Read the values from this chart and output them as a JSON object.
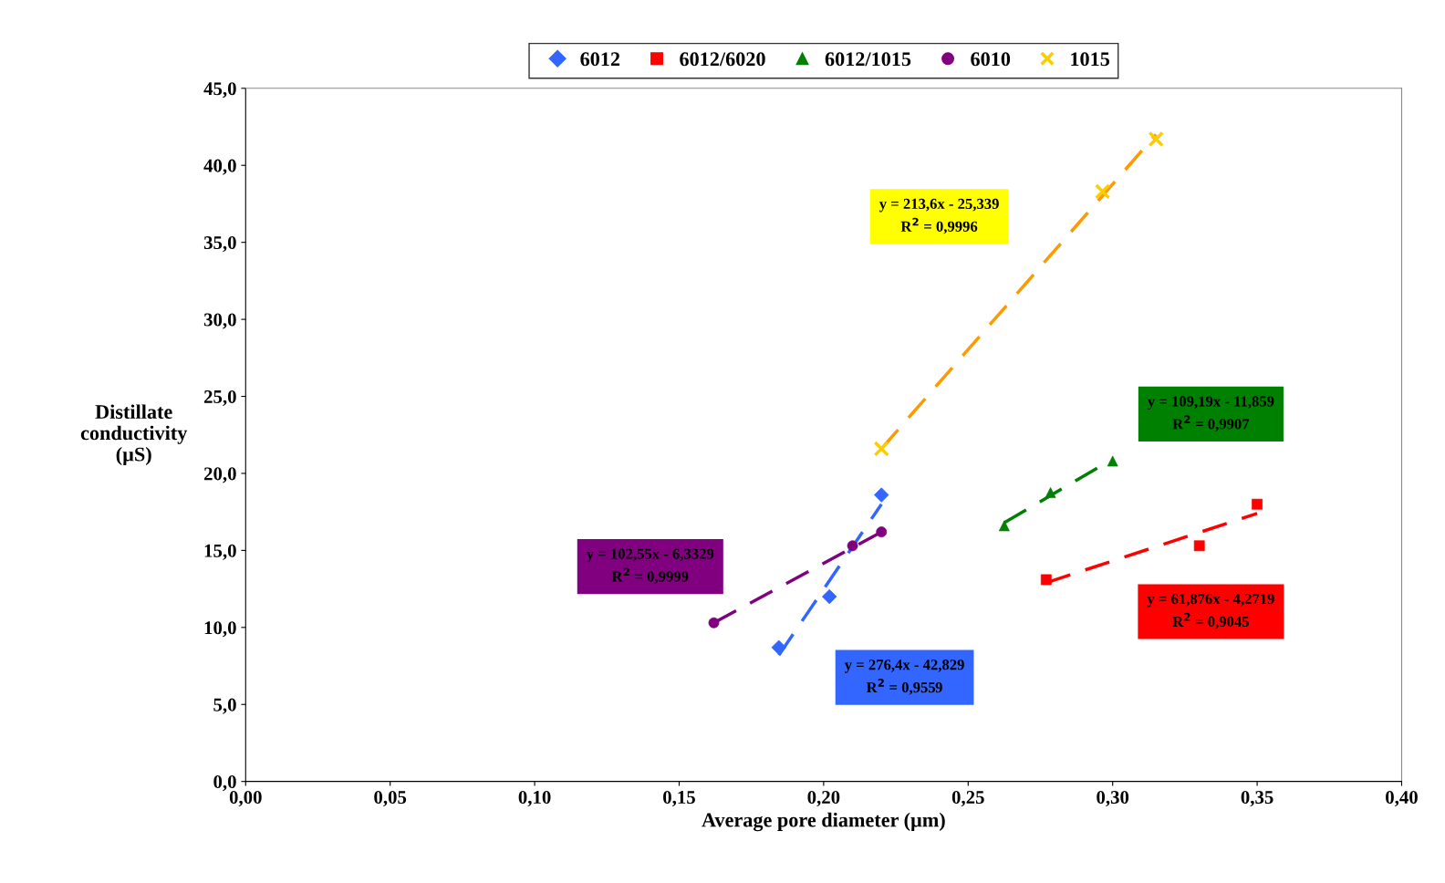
{
  "chart_data": {
    "type": "scatter",
    "xlabel": "Average pore diameter (µm)",
    "ylabel": "Distillate\nconductivity\n(µS)",
    "xlim": [
      0,
      0.4
    ],
    "ylim": [
      0,
      45
    ],
    "xticks": [
      {
        "value": 0,
        "label": "0,00"
      },
      {
        "value": 0.05,
        "label": "0,05"
      },
      {
        "value": 0.1,
        "label": "0,10"
      },
      {
        "value": 0.15,
        "label": "0,15"
      },
      {
        "value": 0.2,
        "label": "0,20"
      },
      {
        "value": 0.25,
        "label": "0,25"
      },
      {
        "value": 0.3,
        "label": "0,30"
      },
      {
        "value": 0.35,
        "label": "0,35"
      },
      {
        "value": 0.4,
        "label": "0,40"
      }
    ],
    "yticks": [
      {
        "value": 0,
        "label": "0,0"
      },
      {
        "value": 5,
        "label": "5,0"
      },
      {
        "value": 10,
        "label": "10,0"
      },
      {
        "value": 15,
        "label": "15,0"
      },
      {
        "value": 20,
        "label": "20,0"
      },
      {
        "value": 25,
        "label": "25,0"
      },
      {
        "value": 30,
        "label": "30,0"
      },
      {
        "value": 35,
        "label": "35,0"
      },
      {
        "value": 40,
        "label": "40,0"
      },
      {
        "value": 45,
        "label": "45,0"
      }
    ],
    "grid": false,
    "legend": "top",
    "series": [
      {
        "name": "6012",
        "marker": "diamond",
        "color": "#3366ff",
        "x": [
          0.1845,
          0.202,
          0.22
        ],
        "values": [
          8.7,
          12.0,
          18.6
        ]
      },
      {
        "name": "6012/6020",
        "marker": "square",
        "color": "#ff0000",
        "x": [
          0.277,
          0.33,
          0.35
        ],
        "values": [
          13.1,
          15.3,
          18.0
        ]
      },
      {
        "name": "6012/1015",
        "marker": "triangle",
        "color": "#008000",
        "x": [
          0.2625,
          0.2785,
          0.3
        ],
        "values": [
          16.6,
          18.75,
          20.8
        ]
      },
      {
        "name": "6010",
        "marker": "circle",
        "color": "#800080",
        "x": [
          0.162,
          0.21,
          0.22
        ],
        "values": [
          10.3,
          15.3,
          16.2
        ]
      },
      {
        "name": "1015",
        "marker": "cross",
        "color": "#ffcc00",
        "x": [
          0.22,
          0.2965,
          0.315
        ],
        "values": [
          21.6,
          38.3,
          41.7
        ]
      },
      {
        "type": "line",
        "marker": "none",
        "line_style": "dashed",
        "color": "#3366ff",
        "x": [
          0.1845,
          0.22
        ],
        "values": [
          8.2,
          18.0
        ]
      },
      {
        "type": "line",
        "marker": "none",
        "line_style": "dashed",
        "color": "#ff0000",
        "x": [
          0.277,
          0.35
        ],
        "values": [
          12.9,
          17.4
        ]
      },
      {
        "type": "line",
        "marker": "none",
        "line_style": "dashed",
        "color": "#008000",
        "x": [
          0.2625,
          0.297
        ],
        "values": [
          16.8,
          20.6
        ]
      },
      {
        "type": "line",
        "marker": "none",
        "line_style": "dashed",
        "color": "#800080",
        "x": [
          0.162,
          0.22
        ],
        "values": [
          10.3,
          16.2
        ]
      },
      {
        "type": "line",
        "marker": "none",
        "line_style": "dashed",
        "color": "#ff9900",
        "x": [
          0.22,
          0.315
        ],
        "values": [
          21.6,
          42.0
        ]
      }
    ],
    "annotations": [
      "y = 276,4x - 42,829\nR$^{2}$ = 0,9559",
      "y = 61,876x - 4,2719\nR$^{2}$ = 0,9045",
      "y = 109,19x - 11,859\nR$^{2}$ = 0,9907",
      "y = 102,55x - 6,3329\nR$^{2}$ = 0,9999",
      "y = 213,6x - 25,339\nR$^{2}$ = 0,9996"
    ]
  }
}
